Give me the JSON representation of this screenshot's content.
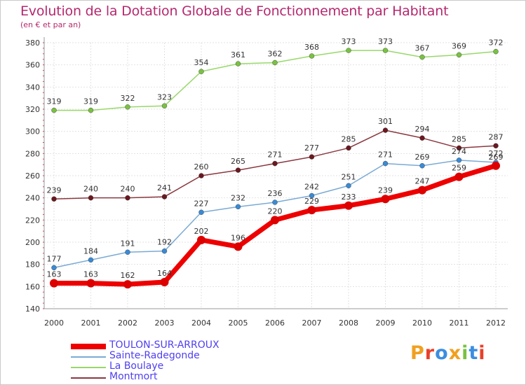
{
  "header": {
    "title": "Evolution de la Dotation Globale de Fonctionnement par Habitant",
    "subtitle": "(en € et par an)"
  },
  "logo": {
    "text": "Proxiti",
    "colors": [
      "#f0a020",
      "#e8402a",
      "#3c8de0",
      "#f0a020",
      "#7ac142",
      "#3c8de0",
      "#e8402a"
    ]
  },
  "chart_data": {
    "type": "line",
    "title": "Evolution de la Dotation Globale de Fonctionnement par Habitant",
    "subtitle": "(en € et par an)",
    "xlabel": "",
    "ylabel": "",
    "ylim": [
      140,
      380
    ],
    "y_ticks": [
      140,
      160,
      180,
      200,
      220,
      240,
      260,
      280,
      300,
      320,
      340,
      360,
      380
    ],
    "categories": [
      "2000",
      "2001",
      "2002",
      "2003",
      "2004",
      "2005",
      "2006",
      "2007",
      "2008",
      "2009",
      "2010",
      "2011",
      "2012"
    ],
    "grid": true,
    "series": [
      {
        "name": "TOULON-SUR-ARROUX",
        "color": "#ee0000",
        "marker": "#dd0000",
        "width": 7,
        "values": [
          163,
          163,
          162,
          164,
          202,
          196,
          220,
          229,
          233,
          239,
          247,
          259,
          269
        ]
      },
      {
        "name": "Sainte-Radegonde",
        "color": "#7aaad4",
        "marker": "#3a8ad4",
        "width": 1.5,
        "values": [
          177,
          184,
          191,
          192,
          227,
          232,
          236,
          242,
          251,
          271,
          269,
          274,
          272
        ]
      },
      {
        "name": "La Boulaye",
        "color": "#98d86a",
        "marker": "#7ac142",
        "width": 1.5,
        "values": [
          319,
          319,
          322,
          323,
          354,
          361,
          362,
          368,
          373,
          373,
          367,
          369,
          372
        ]
      },
      {
        "name": "Montmort",
        "color": "#8a3840",
        "marker": "#6a1820",
        "width": 1.5,
        "values": [
          239,
          240,
          240,
          241,
          260,
          265,
          271,
          277,
          285,
          301,
          294,
          285,
          287
        ]
      }
    ],
    "legend": "bottom-left"
  }
}
